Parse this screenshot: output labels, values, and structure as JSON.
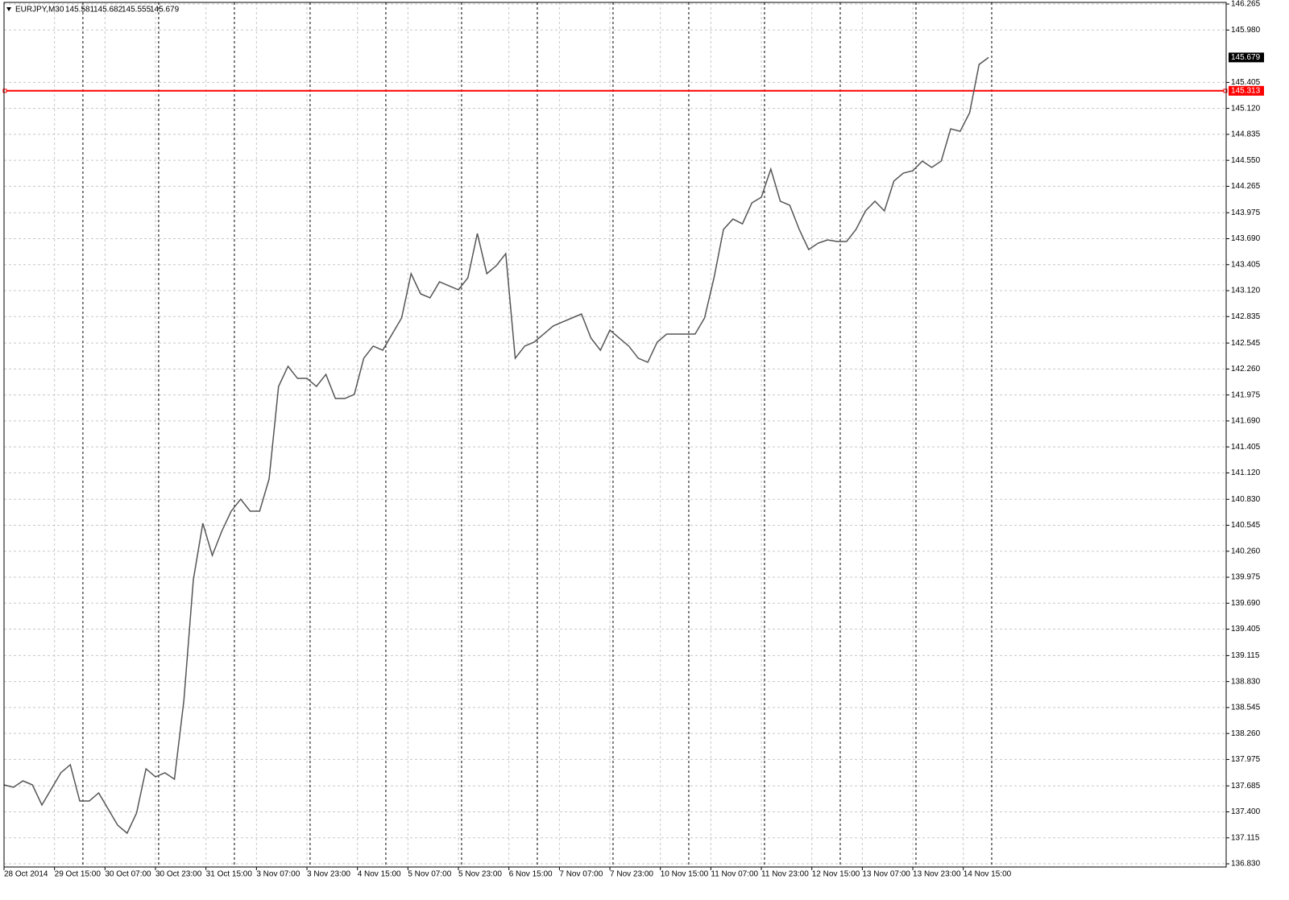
{
  "chart_data": {
    "type": "line",
    "title": "EURJPY,M30",
    "last_bar": {
      "open": 145.581,
      "high": 145.682,
      "low": 145.555,
      "close": 145.679
    },
    "color": "#555555",
    "x": [
      0,
      3,
      6,
      9,
      12,
      15,
      18,
      21,
      24,
      27,
      30,
      33,
      36,
      39,
      42,
      45,
      48,
      51,
      54,
      57,
      60,
      63,
      66,
      69,
      72,
      75,
      78,
      81,
      84,
      87,
      90,
      93,
      96,
      99,
      102,
      105,
      108,
      111,
      114,
      117,
      120,
      123,
      126,
      129,
      132,
      135,
      138,
      141,
      144,
      147,
      150,
      153,
      156,
      159,
      162,
      165,
      168,
      171,
      174,
      177,
      180,
      183,
      186,
      189,
      192,
      195,
      198,
      201,
      204,
      207,
      210,
      213,
      216,
      219,
      222,
      225,
      228,
      231,
      234,
      237,
      240,
      243,
      246,
      249,
      252,
      255,
      258,
      261,
      264,
      267,
      270,
      273,
      276,
      279,
      282,
      285,
      288,
      291,
      294,
      297,
      300,
      303,
      306,
      309,
      312
    ],
    "values": [
      137.696,
      137.67,
      137.74,
      137.696,
      137.475,
      137.652,
      137.829,
      137.917,
      137.519,
      137.519,
      137.608,
      137.431,
      137.254,
      137.166,
      137.387,
      137.873,
      137.784,
      137.829,
      137.758,
      138.624,
      139.949,
      140.567,
      140.214,
      140.479,
      140.7,
      140.832,
      140.7,
      140.7,
      141.053,
      142.069,
      142.29,
      142.157,
      142.157,
      142.069,
      142.201,
      141.936,
      141.936,
      141.981,
      142.378,
      142.511,
      142.466,
      142.643,
      142.82,
      143.306,
      143.085,
      143.041,
      143.217,
      143.173,
      143.129,
      143.261,
      143.747,
      143.306,
      143.394,
      143.526,
      142.378,
      142.511,
      142.555,
      142.643,
      142.731,
      142.776,
      142.82,
      142.864,
      142.599,
      142.466,
      142.687,
      142.599,
      142.511,
      142.378,
      142.334,
      142.555,
      142.643,
      142.643,
      142.643,
      142.643,
      142.82,
      143.261,
      143.792,
      143.906,
      143.853,
      144.083,
      144.145,
      144.454,
      144.101,
      144.057,
      143.792,
      143.571,
      143.641,
      143.677,
      143.659,
      143.659,
      143.792,
      143.995,
      144.101,
      143.995,
      144.322,
      144.41,
      144.436,
      144.542,
      144.472,
      144.542,
      144.896,
      144.869,
      145.072,
      145.602,
      145.679
    ],
    "xlim": [
      0,
      387.3
    ],
    "xticks": [
      {
        "value": 0,
        "label": "28 Oct 2014"
      },
      {
        "value": 16,
        "label": "29 Oct 15:00"
      },
      {
        "value": 32,
        "label": "30 Oct 07:00"
      },
      {
        "value": 48,
        "label": "30 Oct 23:00"
      },
      {
        "value": 64,
        "label": "31 Oct 15:00"
      },
      {
        "value": 80,
        "label": "3 Nov 07:00"
      },
      {
        "value": 96,
        "label": "3 Nov 23:00"
      },
      {
        "value": 112,
        "label": "4 Nov 15:00"
      },
      {
        "value": 128,
        "label": "5 Nov 07:00"
      },
      {
        "value": 144,
        "label": "5 Nov 23:00"
      },
      {
        "value": 160,
        "label": "6 Nov 15:00"
      },
      {
        "value": 176,
        "label": "7 Nov 07:00"
      },
      {
        "value": 192,
        "label": "7 Nov 23:00"
      },
      {
        "value": 208,
        "label": "10 Nov 15:00"
      },
      {
        "value": 224,
        "label": "11 Nov 07:00"
      },
      {
        "value": 240,
        "label": "11 Nov 23:00"
      },
      {
        "value": 256,
        "label": "12 Nov 15:00"
      },
      {
        "value": 272,
        "label": "13 Nov 07:00"
      },
      {
        "value": 288,
        "label": "13 Nov 23:00"
      },
      {
        "value": 304,
        "label": "14 Nov 15:00"
      }
    ],
    "separators": [
      25,
      49,
      73,
      97,
      121,
      145,
      169,
      193,
      217,
      241,
      265,
      289,
      313
    ],
    "ylim": [
      136.795,
      146.283
    ],
    "yticks": [
      146.265,
      {
        "value": 145.98,
        "label": "145.980"
      },
      145.405,
      {
        "value": 145.12,
        "label": "145.120"
      },
      144.835,
      {
        "value": 144.55,
        "label": "144.550"
      },
      144.265,
      143.975,
      {
        "value": 143.69,
        "label": "143.690"
      },
      143.405,
      {
        "value": 143.12,
        "label": "143.120"
      },
      142.835,
      142.545,
      {
        "value": 142.26,
        "label": "142.260"
      },
      141.975,
      {
        "value": 141.69,
        "label": "141.690"
      },
      141.405,
      {
        "value": 141.12,
        "label": "141.120"
      },
      {
        "value": 140.83,
        "label": "140.830"
      },
      140.545,
      {
        "value": 140.26,
        "label": "140.260"
      },
      139.975,
      {
        "value": 139.69,
        "label": "139.690"
      },
      139.405,
      139.115,
      {
        "value": 138.83,
        "label": "138.830"
      },
      138.545,
      {
        "value": 138.26,
        "label": "138.260"
      },
      137.975,
      137.685,
      {
        "value": 137.4,
        "label": "137.400"
      },
      137.115,
      {
        "value": 136.83,
        "label": "136.830"
      }
    ],
    "grid": true,
    "hline": {
      "value": 145.313,
      "color": "#ff0000"
    }
  }
}
